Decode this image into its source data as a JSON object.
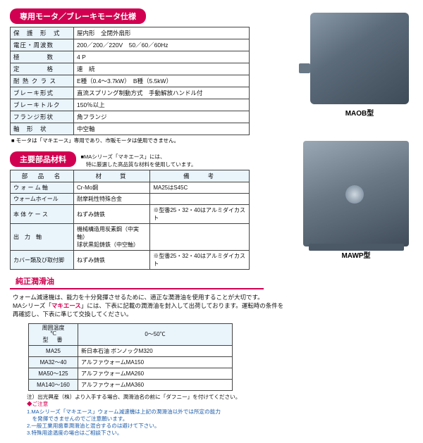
{
  "headings": {
    "motor": "専用モータ／ブレーキモータ仕様",
    "materials": "主要部品材料",
    "materials_note1": "■MAシリーズ「マキエース」には、",
    "materials_note2": "　特に厳選した高品質な材料を使用しています。",
    "lubricant": "純正潤滑油"
  },
  "images": {
    "label1": "MAOB型",
    "label2": "MAWP型"
  },
  "spec": {
    "rows": [
      {
        "k": "保　護　形　式",
        "v": "屋内形　全閉外扇形"
      },
      {
        "k": "電圧・周波数",
        "v": "200／200／220V　50／60／60Hz"
      },
      {
        "k": "極　　　　数",
        "v": "4 P"
      },
      {
        "k": "定　　　　格",
        "v": "連　続"
      },
      {
        "k": "耐 熱 ク ラ ス",
        "v": "E種（0.4〜3.7kW）　B種（5.5kW）"
      },
      {
        "k": "ブレーキ形式",
        "v": "直流スプリング制動方式　手動解放ハンドル付"
      },
      {
        "k": "ブレーキトルク",
        "v": "150％以上"
      },
      {
        "k": "フランジ形状",
        "v": "角フランジ"
      },
      {
        "k": "軸　形　状",
        "v": "中空軸"
      }
    ],
    "footnote": "■ モータは「マキエース」専用であり、市販モータは使用できません。"
  },
  "materials": {
    "headers": [
      "部　品　名",
      "材　　質",
      "備　　考"
    ],
    "rows": [
      {
        "n": "ウ ォ ー ム 軸",
        "m": "Cr-Mo鋼",
        "r": "MA25はS45C"
      },
      {
        "n": "ウォームホイール",
        "m": "耐摩耗性特殊合金",
        "r": ""
      },
      {
        "n": "本 体 ケ ー ス",
        "m": "ねずみ鋳鉄",
        "r": "※型番25・32・40はアルミダイカスト"
      },
      {
        "n": "出　力　軸",
        "m": "機械構造用炭素鋼（中実軸）\n球状黒鉛鋳鉄（中空軸）",
        "r": ""
      },
      {
        "n": "カバー類及び取付脚",
        "m": "ねずみ鋳鉄",
        "r": "※型番25・32・40はアルミダイカスト"
      }
    ]
  },
  "lubr_text": {
    "l1": "ウォーム減速機は、能力を十分発揮させるために、適正な潤滑油を使用することが大切です。",
    "l2a": "MAシリーズ「",
    "l2b": "マキエース",
    "l2c": "」には、下表に記載の潤滑油を封入して出荷しております。運転時の条件を",
    "l3": "再確認し、下表に準じて交換してください。"
  },
  "lub": {
    "header_top": "周囲温度\n℃",
    "header_model": "型　番",
    "range": "0〜50℃",
    "rows": [
      {
        "m": "MA25",
        "o": "新日本石油 ボンノックM320"
      },
      {
        "m": "MA32〜40",
        "o": "アルファウォームMA150"
      },
      {
        "m": "MA50〜125",
        "o": "アルファウォームMA260"
      },
      {
        "m": "MA140〜160",
        "o": "アルファウォームMA360"
      }
    ]
  },
  "notes": {
    "n0": "注）出光興産（株）より入手する場合、潤滑油名の前に「ダフニー」を付けてください。",
    "warn": "◆ご注意",
    "n1": "1.MAシリーズ「マキエース」ウォーム減速機は上記の潤滑油以外では所定の能力",
    "n1b": "　を発揮できませんのでご注意願います。",
    "n2": "2.一般工業用歯車潤滑油と混合するのは避けて下さい。",
    "n3": "3.特殊用途温度の場合はご相談下さい。"
  },
  "colors": {
    "accent": "#d10050",
    "header_bg": "#e9f4fb",
    "border": "#444444",
    "blue": "#1a5aa8"
  }
}
